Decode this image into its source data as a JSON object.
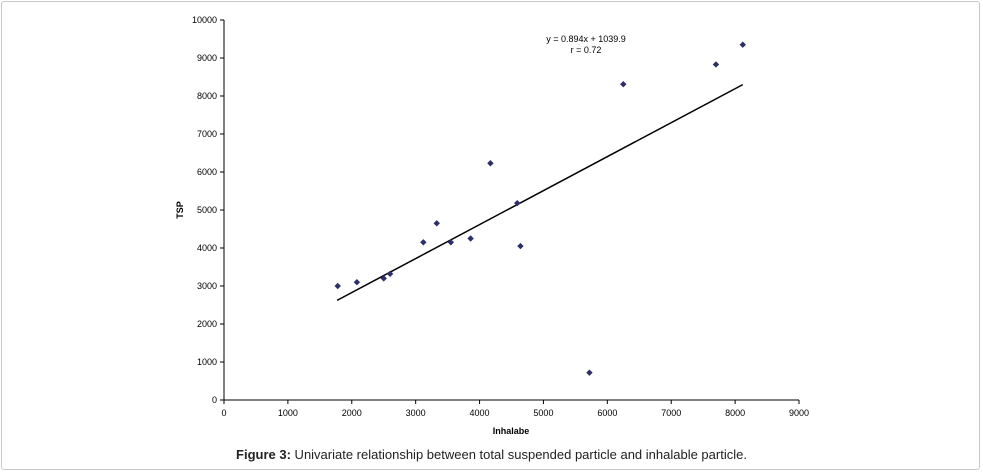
{
  "chart_data": {
    "type": "scatter",
    "xlabel": "Inhalabe",
    "ylabel": "TSP",
    "xlim": [
      0,
      9000
    ],
    "ylim": [
      0,
      10000
    ],
    "x_ticks": [
      0,
      1000,
      2000,
      3000,
      4000,
      5000,
      6000,
      7000,
      8000,
      9000
    ],
    "y_ticks": [
      0,
      1000,
      2000,
      3000,
      4000,
      5000,
      6000,
      7000,
      8000,
      9000,
      10000
    ],
    "grid": false,
    "legend": "none",
    "points": [
      {
        "x": 1780,
        "y": 3000
      },
      {
        "x": 2080,
        "y": 3100
      },
      {
        "x": 2500,
        "y": 3200
      },
      {
        "x": 2600,
        "y": 3320
      },
      {
        "x": 3120,
        "y": 4150
      },
      {
        "x": 3330,
        "y": 4650
      },
      {
        "x": 3550,
        "y": 4150
      },
      {
        "x": 3860,
        "y": 4250
      },
      {
        "x": 4170,
        "y": 6230
      },
      {
        "x": 4590,
        "y": 5180
      },
      {
        "x": 4640,
        "y": 4050
      },
      {
        "x": 5720,
        "y": 720
      },
      {
        "x": 6250,
        "y": 8310
      },
      {
        "x": 7700,
        "y": 8830
      },
      {
        "x": 8120,
        "y": 9350
      }
    ],
    "trendline": {
      "slope": 0.894,
      "intercept": 1039.9,
      "x_range": [
        1770,
        8120
      ]
    },
    "annotations": [
      "y = 0.894x + 1039.9",
      "r = 0.72"
    ],
    "marker_color": "#2e2e6b",
    "line_color": "#000000"
  },
  "caption": {
    "label": "Figure 3:",
    "text": " Univariate relationship between total suspended particle and inhalable particle."
  }
}
